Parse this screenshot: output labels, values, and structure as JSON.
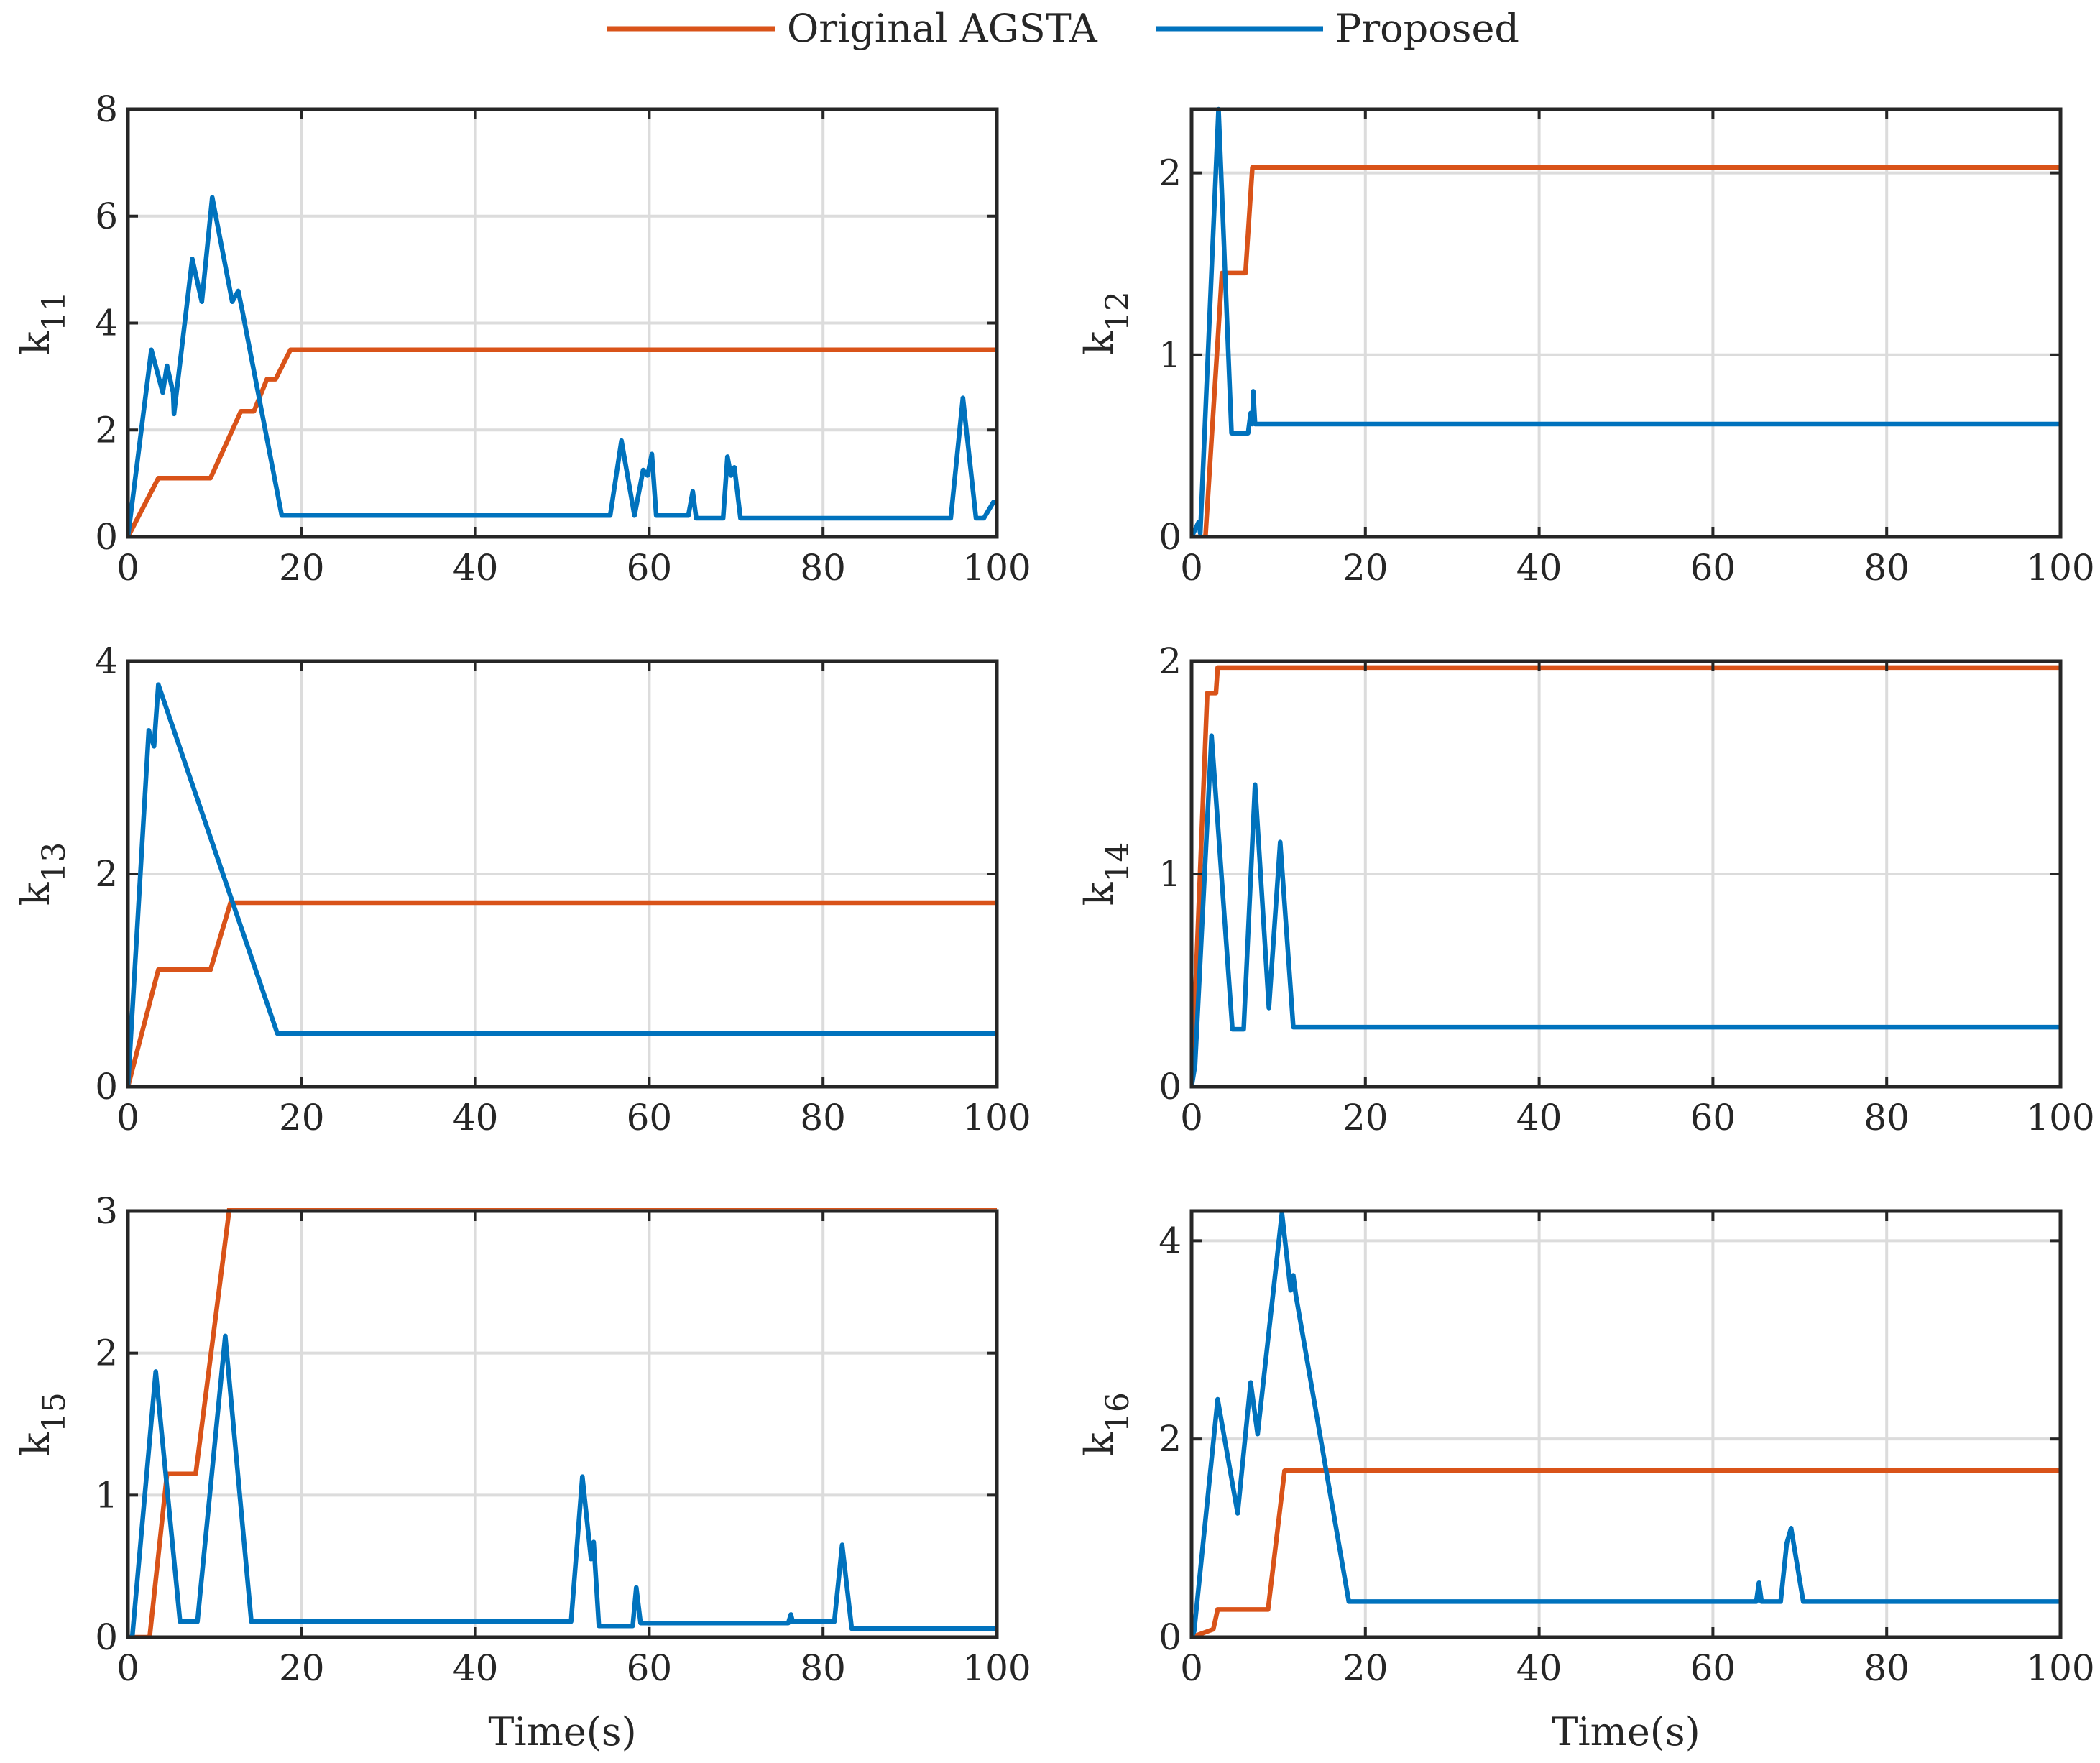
{
  "legend": [
    {
      "label": "Original AGSTA",
      "color": "#D95319"
    },
    {
      "label": "Proposed",
      "color": "#0072BD"
    }
  ],
  "chart_data": [
    {
      "type": "line",
      "ylabel_main": "k",
      "ylabel_sub": "11",
      "xlabel": "",
      "xlim": [
        0,
        100
      ],
      "ylim": [
        0,
        8
      ],
      "xticks": [
        0,
        20,
        40,
        60,
        80,
        100
      ],
      "yticks": [
        0,
        2,
        4,
        6,
        8
      ],
      "grid": true,
      "series": [
        {
          "name": "Original AGSTA",
          "x": [
            0,
            3.5,
            9.5,
            13,
            14.5,
            15.5,
            16,
            17,
            18.7,
            100
          ],
          "y": [
            0,
            1.1,
            1.1,
            2.35,
            2.35,
            2.75,
            2.95,
            2.95,
            3.5,
            3.5
          ]
        },
        {
          "name": "Proposed",
          "x": [
            0,
            2.7,
            4,
            4.5,
            5.2,
            5.3,
            7.4,
            8.5,
            9.7,
            12,
            12.7,
            13.2,
            17.7,
            55.5,
            56.8,
            58.3,
            59.3,
            59.8,
            60.3,
            60.8,
            62,
            64.5,
            65,
            65.4,
            68.5,
            69,
            69.4,
            69.8,
            70.5,
            94.7,
            96.1,
            97.6,
            98.5,
            99.6,
            100
          ],
          "y": [
            0,
            3.5,
            2.7,
            3.2,
            2.7,
            2.3,
            5.2,
            4.4,
            6.35,
            4.4,
            4.6,
            4.2,
            0.4,
            0.4,
            1.8,
            0.4,
            1.25,
            1.15,
            1.55,
            0.4,
            0.4,
            0.4,
            0.85,
            0.35,
            0.35,
            1.5,
            1.15,
            1.3,
            0.35,
            0.35,
            2.6,
            0.35,
            0.35,
            0.65,
            0.65
          ]
        }
      ]
    },
    {
      "type": "line",
      "ylabel_main": "k",
      "ylabel_sub": "12",
      "xlabel": "",
      "xlim": [
        0,
        100
      ],
      "ylim": [
        0,
        2.35
      ],
      "xticks": [
        0,
        20,
        40,
        60,
        80,
        100
      ],
      "yticks": [
        0,
        1,
        2
      ],
      "grid": true,
      "series": [
        {
          "name": "Original AGSTA",
          "x": [
            0,
            1.6,
            3.5,
            6.2,
            7,
            100
          ],
          "y": [
            0,
            0,
            1.45,
            1.45,
            2.03,
            2.03
          ]
        },
        {
          "name": "Proposed",
          "x": [
            0,
            0.8,
            1.0,
            3.1,
            4.6,
            6.5,
            6.8,
            7.0,
            7.1,
            7.3,
            100
          ],
          "y": [
            0,
            0.08,
            0.02,
            2.35,
            0.57,
            0.57,
            0.68,
            0.62,
            0.8,
            0.62,
            0.62
          ]
        }
      ]
    },
    {
      "type": "line",
      "ylabel_main": "k",
      "ylabel_sub": "13",
      "xlabel": "",
      "xlim": [
        0,
        100
      ],
      "ylim": [
        0,
        4
      ],
      "xticks": [
        0,
        20,
        40,
        60,
        80,
        100
      ],
      "yticks": [
        0,
        2,
        4
      ],
      "grid": true,
      "series": [
        {
          "name": "Original AGSTA",
          "x": [
            0,
            3.5,
            9.5,
            11.8,
            100
          ],
          "y": [
            0,
            1.1,
            1.1,
            1.73,
            1.73
          ]
        },
        {
          "name": "Proposed",
          "x": [
            0,
            2.4,
            3.0,
            3.5,
            17.2,
            100
          ],
          "y": [
            0,
            3.35,
            3.2,
            3.78,
            0.5,
            0.5
          ]
        }
      ]
    },
    {
      "type": "line",
      "ylabel_main": "k",
      "ylabel_sub": "14",
      "xlabel": "",
      "xlim": [
        0,
        100
      ],
      "ylim": [
        0,
        2
      ],
      "xticks": [
        0,
        20,
        40,
        60,
        80,
        100
      ],
      "yticks": [
        0,
        1,
        2
      ],
      "grid": true,
      "series": [
        {
          "name": "Original AGSTA",
          "x": [
            0,
            1.8,
            2.8,
            3.0,
            100
          ],
          "y": [
            0,
            1.85,
            1.85,
            1.97,
            1.97
          ]
        },
        {
          "name": "Proposed",
          "x": [
            0,
            0.4,
            2.3,
            4.7,
            6.0,
            7.3,
            8.9,
            10.2,
            11.7,
            100
          ],
          "y": [
            0,
            0.1,
            1.65,
            0.27,
            0.27,
            1.42,
            0.37,
            1.15,
            0.28,
            0.28
          ]
        }
      ]
    },
    {
      "type": "line",
      "ylabel_main": "k",
      "ylabel_sub": "15",
      "xlabel": "Time(s)",
      "xlim": [
        0,
        100
      ],
      "ylim": [
        0,
        3
      ],
      "xticks": [
        0,
        20,
        40,
        60,
        80,
        100
      ],
      "yticks": [
        0,
        1,
        2,
        3
      ],
      "grid": true,
      "series": [
        {
          "name": "Original AGSTA",
          "x": [
            0,
            2.5,
            4.5,
            7.8,
            11.7,
            100
          ],
          "y": [
            0,
            0,
            1.15,
            1.15,
            3.03,
            3.03
          ]
        },
        {
          "name": "Proposed",
          "x": [
            0,
            0.5,
            3.2,
            6,
            8,
            11.2,
            14.2,
            51,
            52.3,
            53.3,
            53.6,
            54.2,
            58.1,
            58.5,
            59.0,
            76,
            76.3,
            76.5,
            81.3,
            82.2,
            83.3,
            100
          ],
          "y": [
            0,
            0,
            1.87,
            0.11,
            0.11,
            2.12,
            0.11,
            0.11,
            1.13,
            0.55,
            0.67,
            0.08,
            0.08,
            0.35,
            0.1,
            0.1,
            0.16,
            0.11,
            0.11,
            0.65,
            0.06,
            0.06
          ]
        }
      ]
    },
    {
      "type": "line",
      "ylabel_main": "k",
      "ylabel_sub": "16",
      "xlabel": "Time(s)",
      "xlim": [
        0,
        100
      ],
      "ylim": [
        0,
        4.3
      ],
      "xticks": [
        0,
        20,
        40,
        60,
        80,
        100
      ],
      "yticks": [
        0,
        2,
        4
      ],
      "grid": true,
      "series": [
        {
          "name": "Original AGSTA",
          "x": [
            0,
            2.5,
            3,
            8.8,
            10.7,
            100
          ],
          "y": [
            0,
            0.08,
            0.28,
            0.28,
            1.68,
            1.68
          ]
        },
        {
          "name": "Proposed",
          "x": [
            0,
            0.3,
            3.0,
            5.3,
            6.8,
            7.6,
            10.4,
            11.4,
            11.7,
            12.0,
            18.1,
            65,
            65.3,
            65.6,
            67.8,
            68.5,
            69,
            70.4,
            100
          ],
          "y": [
            0,
            0.06,
            2.4,
            1.25,
            2.57,
            2.05,
            4.28,
            3.5,
            3.65,
            3.45,
            0.36,
            0.36,
            0.55,
            0.36,
            0.36,
            0.95,
            1.1,
            0.36,
            0.36
          ]
        }
      ]
    }
  ]
}
